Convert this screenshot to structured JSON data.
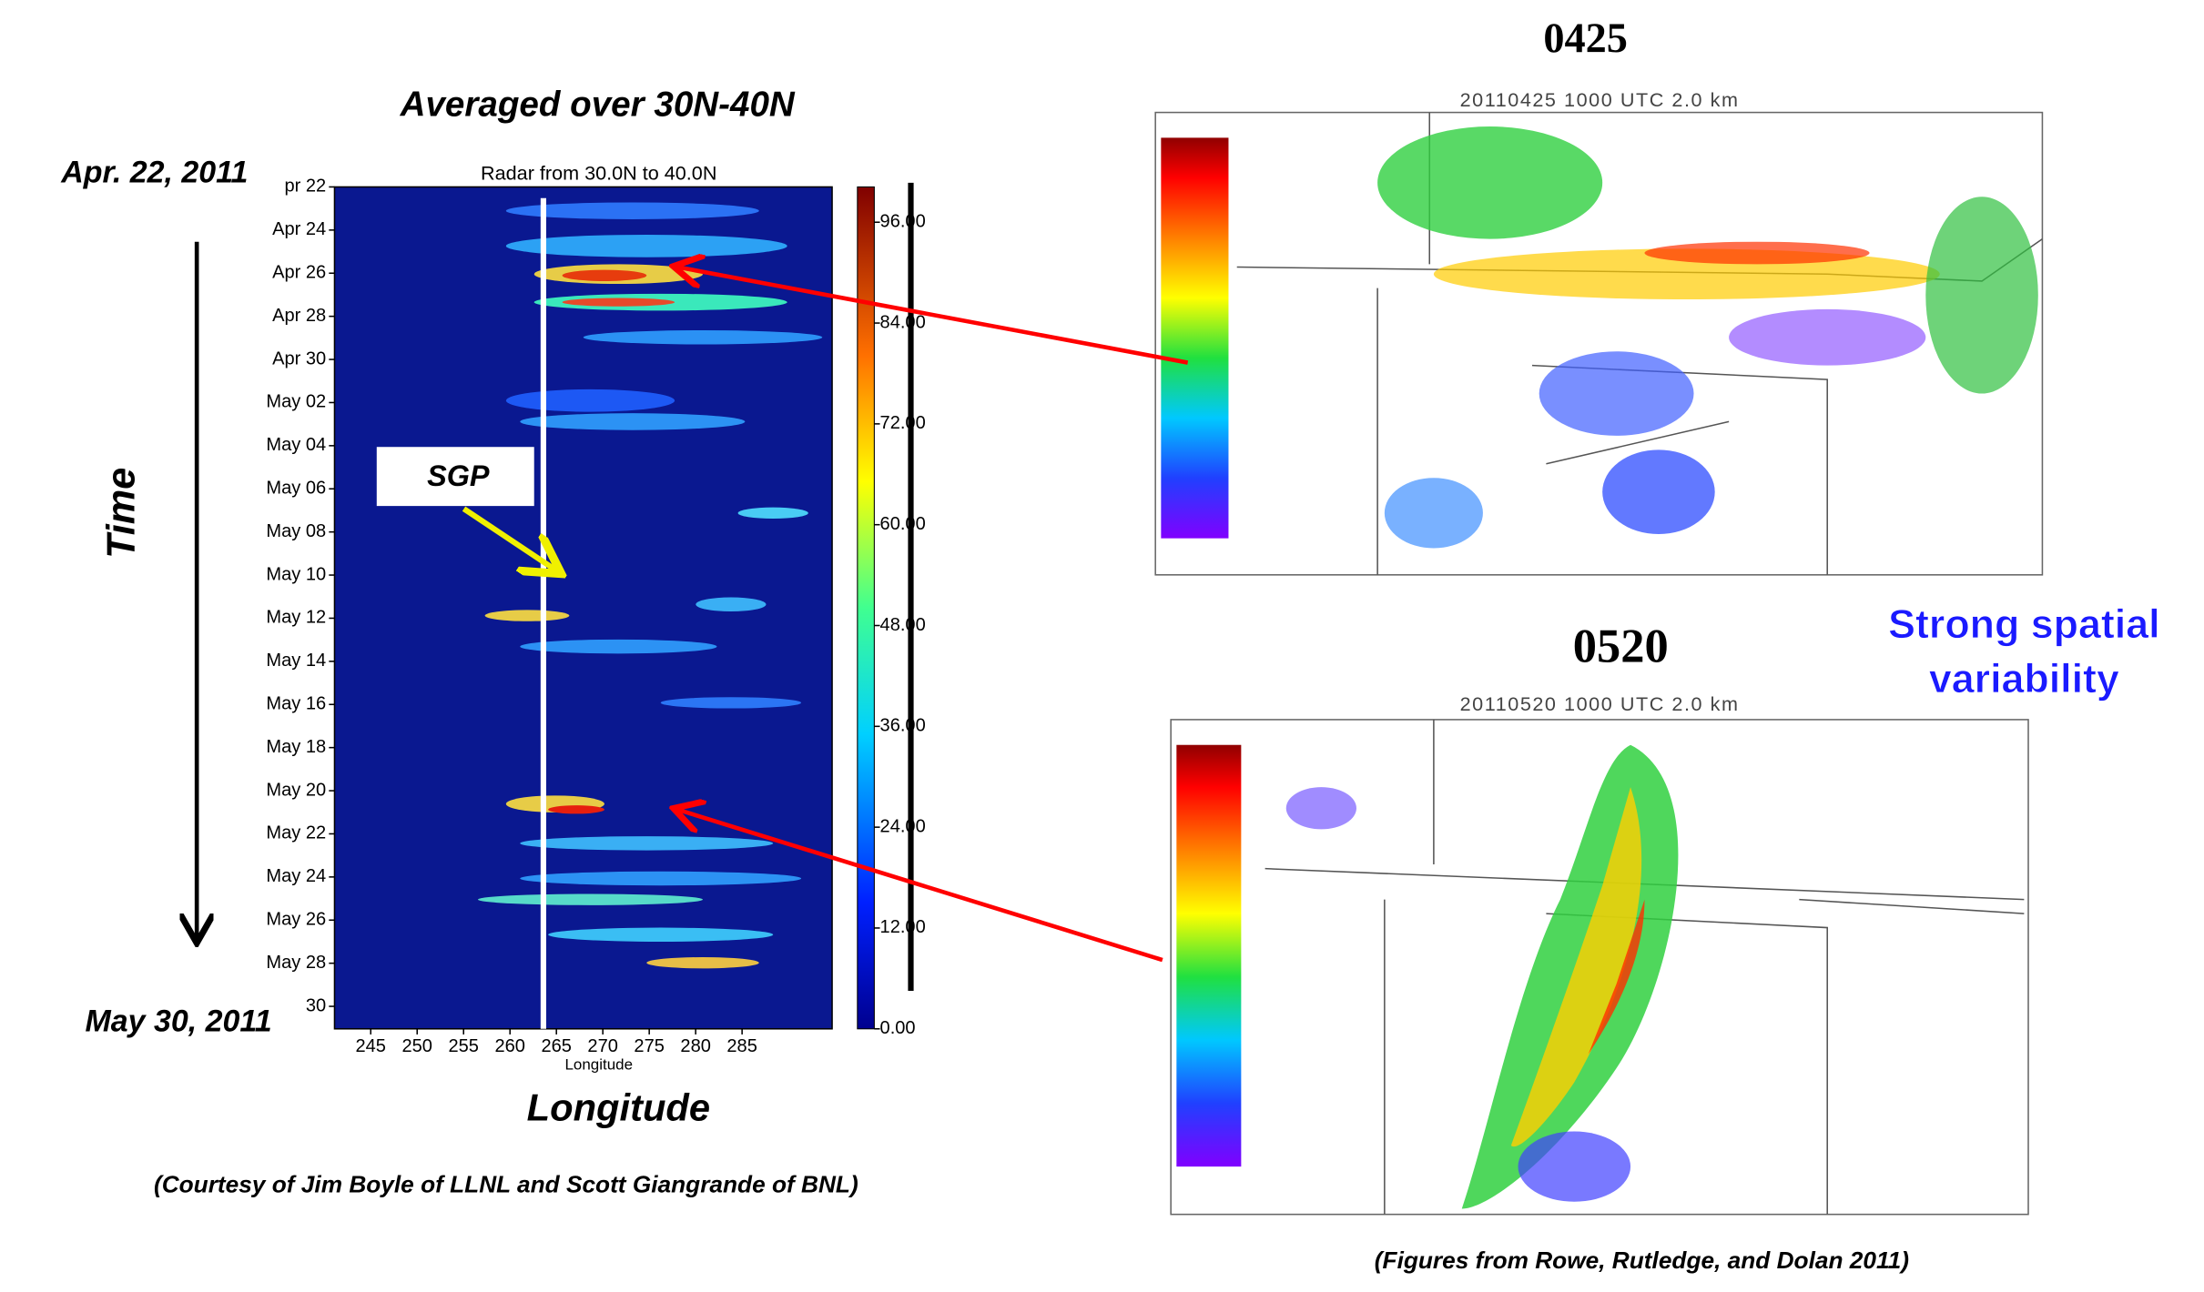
{
  "left_title": "Averaged over 30N-40N",
  "start_date": "Apr. 22, 2011",
  "end_date": "May 30, 2011",
  "time_label": "Time",
  "longitude_label": "Longitude",
  "sgp_label": "SGP",
  "courtesy": "(Courtesy of Jim Boyle of LLNL and Scott Giangrande of BNL)",
  "chart_data": {
    "type": "heatmap",
    "title": "Radar from 30.0N to 40.0N",
    "x_label": "Longitude",
    "xlim": [
      241.1,
      294.7
    ],
    "xticks": [
      245,
      250,
      255,
      260,
      265,
      270,
      275,
      280,
      285
    ],
    "ytick_labels": [
      "pr 22",
      "Apr 24",
      "Apr 26",
      "Apr 28",
      "Apr 30",
      "May 02",
      "May 04",
      "May 06",
      "May 08",
      "May 10",
      "May 12",
      "May 14",
      "May 16",
      "May 18",
      "May 20",
      "May 22",
      "May 24",
      "May 26",
      "May 28",
      "30"
    ],
    "colorbar_lim": [
      0,
      100.2
    ],
    "colorbar_ticks": [
      {
        "value": 0,
        "label": "0.00"
      },
      {
        "value": 12,
        "label": "12.00"
      },
      {
        "value": 24,
        "label": "24.00"
      },
      {
        "value": 36,
        "label": "36.00"
      },
      {
        "value": 48,
        "label": "48.00"
      },
      {
        "value": 60,
        "label": "60.00"
      },
      {
        "value": 72,
        "label": "72.00"
      },
      {
        "value": 84,
        "label": "84.00"
      },
      {
        "value": 96,
        "label": "96.00"
      }
    ],
    "vlines": [
      263.6
    ]
  },
  "maps": [
    {
      "heading": "0425",
      "title": "20110425 1000 UTC 2.0 km"
    },
    {
      "heading": "0520",
      "title": "20110520 1000 UTC 2.0 km"
    }
  ],
  "callout": [
    "Strong spatial",
    "variability"
  ],
  "figures_credit": "(Figures from Rowe, Rutledge, and Dolan 2011)"
}
